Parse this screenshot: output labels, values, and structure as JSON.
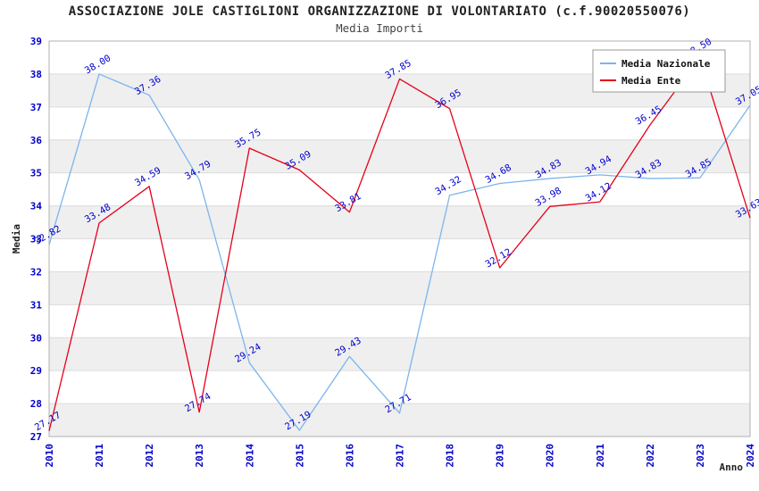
{
  "header": {
    "title": "ASSOCIAZIONE JOLE CASTIGLIONI ORGANIZZAZIONE DI VOLONTARIATO (c.f.90020550076)",
    "subtitle": "Media Importi"
  },
  "axes": {
    "y_label": "Media",
    "x_label": "Anno"
  },
  "legend": {
    "items": [
      {
        "label": "Media Nazionale",
        "color": "#7cb5ec"
      },
      {
        "label": "Media Ente",
        "color": "#e50019"
      }
    ]
  },
  "chart_data": {
    "type": "line",
    "title": "ASSOCIAZIONE JOLE CASTIGLIONI ORGANIZZAZIONE DI VOLONTARIATO (c.f.90020550076)",
    "subtitle": "Media Importi",
    "xlabel": "Anno",
    "ylabel": "Media",
    "ylim": [
      27,
      39
    ],
    "y_tick_step": 1,
    "grid": true,
    "legend_position": "top-right",
    "categories": [
      "2010",
      "2011",
      "2012",
      "2013",
      "2014",
      "2015",
      "2016",
      "2017",
      "2018",
      "2019",
      "2020",
      "2021",
      "2022",
      "2023",
      "2024"
    ],
    "series": [
      {
        "name": "Media Nazionale",
        "color": "#7cb5ec",
        "values": [
          32.82,
          38.0,
          37.36,
          34.79,
          29.24,
          27.19,
          29.43,
          27.71,
          34.32,
          34.68,
          34.83,
          34.94,
          34.83,
          34.85,
          37.05
        ]
      },
      {
        "name": "Media Ente",
        "color": "#e50019",
        "values": [
          27.17,
          33.48,
          34.59,
          27.74,
          35.75,
          35.09,
          33.81,
          37.85,
          36.95,
          32.12,
          33.98,
          34.12,
          36.45,
          38.5,
          33.63
        ]
      }
    ],
    "colors": {
      "tick_label": "#0000cc",
      "data_label": "#0000cc",
      "band": "#efefef",
      "gridline": "#dcdcdc",
      "plot_border": "#b0b0b0",
      "legend_border": "#999999",
      "legend_bg": "#ffffff"
    }
  }
}
